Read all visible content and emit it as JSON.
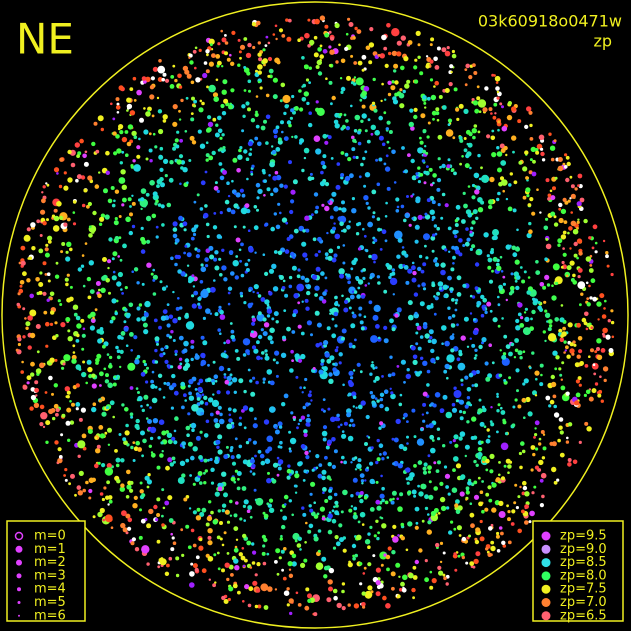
{
  "header": {
    "direction": "NE",
    "frame_id": "03k60918o0471w",
    "mode": "zp"
  },
  "legend_m": {
    "items": [
      "m=0",
      "m=1",
      "m=2",
      "m=3",
      "m=4",
      "m=5",
      "m=6"
    ]
  },
  "legend_zp": {
    "items": [
      {
        "label": "zp=9.5",
        "color": "#e040ff"
      },
      {
        "label": "zp=9.0",
        "color": "#c890ff"
      },
      {
        "label": "zp=8.5",
        "color": "#30e0e8"
      },
      {
        "label": "zp=8.0",
        "color": "#30ff60"
      },
      {
        "label": "zp=7.5",
        "color": "#f0f020"
      },
      {
        "label": "zp=7.0",
        "color": "#ff8030"
      },
      {
        "label": "zp=6.5",
        "color": "#ff6070"
      }
    ]
  }
}
